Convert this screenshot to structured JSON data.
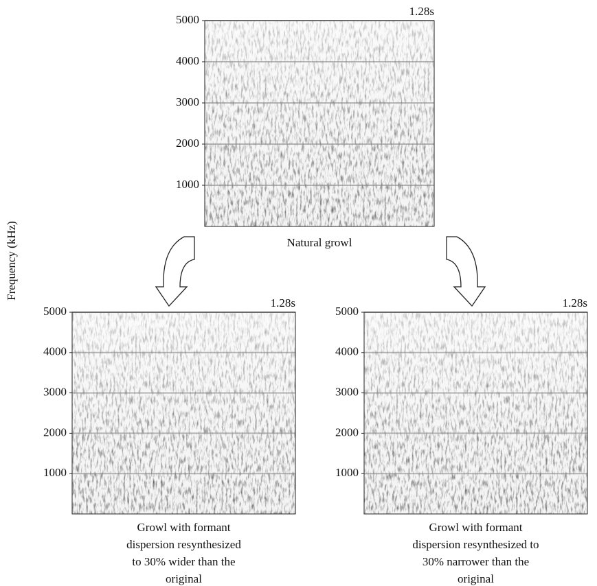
{
  "chart_data": [
    {
      "type": "spectrogram",
      "time_label": "1.28s",
      "ylim": [
        0,
        5000
      ],
      "yticks": [
        1000,
        2000,
        3000,
        4000,
        5000
      ],
      "grid": true,
      "caption": [
        "Natural growl"
      ]
    },
    {
      "type": "spectrogram",
      "time_label": "1.28s",
      "ylim": [
        0,
        5000
      ],
      "yticks": [
        1000,
        2000,
        3000,
        4000,
        5000
      ],
      "grid": true,
      "ylabel": "Frequency (kHz)",
      "caption": [
        "Growl with formant",
        "dispersion resynthesized",
        "to 30% wider than the",
        "original"
      ]
    },
    {
      "type": "spectrogram",
      "time_label": "1.28s",
      "ylim": [
        0,
        5000
      ],
      "yticks": [
        1000,
        2000,
        3000,
        4000,
        5000
      ],
      "grid": true,
      "caption": [
        "Growl with formant",
        "dispersion resynthesized to",
        "30% narrower than the",
        "original"
      ]
    }
  ]
}
